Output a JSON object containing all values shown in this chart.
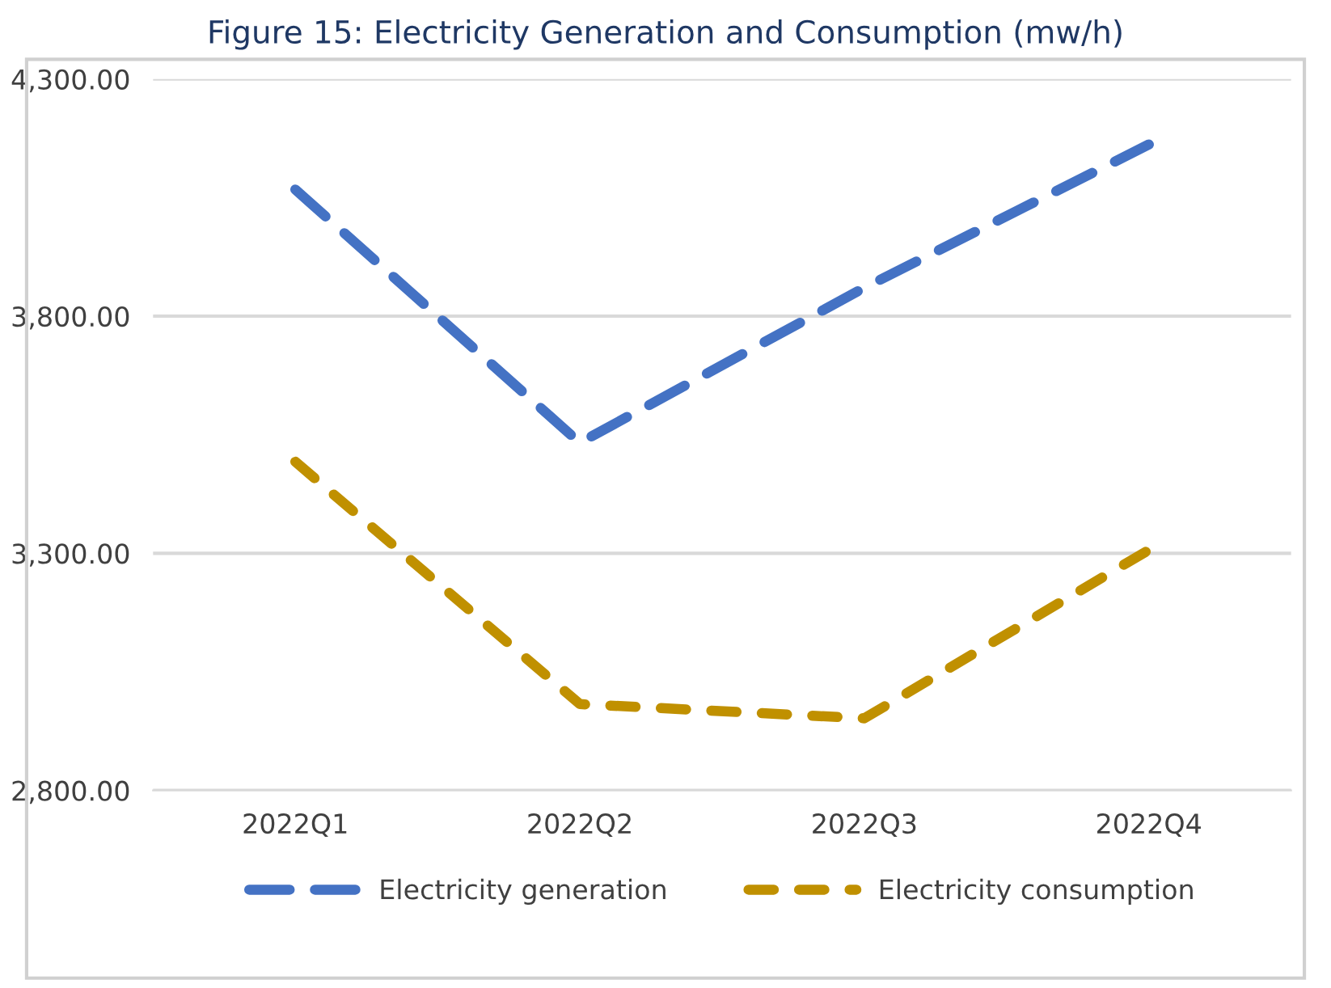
{
  "chart_data": {
    "type": "line",
    "title": "Figure 15: Electricity Generation and Consumption (mw/h)",
    "categories": [
      "2022Q1",
      "2022Q2",
      "2022Q3",
      "2022Q4"
    ],
    "series": [
      {
        "name": "Electricity generation",
        "color": "#4472c4",
        "values": [
          4067,
          3533,
          3860,
          4162
        ],
        "line_style": "dashed"
      },
      {
        "name": "Electricity consumption",
        "color": "#c09000",
        "values": [
          3493,
          2982,
          2952,
          3307
        ],
        "line_style": "dashed"
      }
    ],
    "ylim": [
      2800,
      4300
    ],
    "yticks": [
      {
        "value": 2800,
        "label": "2,800.00"
      },
      {
        "value": 3300,
        "label": "3,300.00"
      },
      {
        "value": 3800,
        "label": "3,800.00"
      },
      {
        "value": 4300,
        "label": "4,300.00"
      }
    ],
    "grid": "y",
    "legend": "bottom",
    "marker": "none"
  }
}
